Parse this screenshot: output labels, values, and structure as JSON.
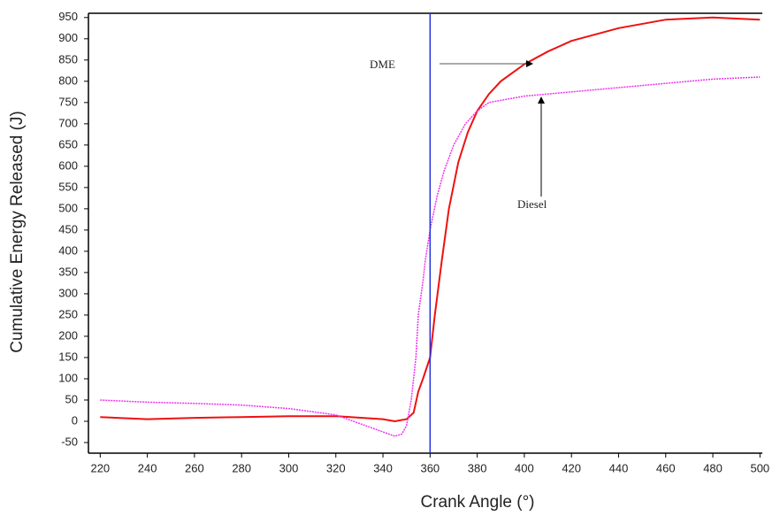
{
  "chart_data": {
    "type": "line",
    "xlabel": "Crank Angle (°)",
    "ylabel": "Cumulative Energy Released (J)",
    "xlim": [
      215,
      501
    ],
    "ylim": [
      -75,
      960
    ],
    "xticks": [
      220,
      240,
      260,
      280,
      300,
      320,
      340,
      360,
      380,
      400,
      420,
      440,
      460,
      480,
      500
    ],
    "yticks": [
      -50,
      0,
      50,
      100,
      150,
      200,
      250,
      300,
      350,
      400,
      450,
      500,
      550,
      600,
      650,
      700,
      750,
      800,
      850,
      900,
      950
    ],
    "vline": {
      "value": 360,
      "color": "#2030e0"
    },
    "annotations": [
      "DME",
      "Diesel"
    ],
    "series": [
      {
        "name": "DME",
        "color": "#ee1111",
        "x": [
          220,
          240,
          260,
          280,
          300,
          320,
          340,
          345,
          350,
          353,
          355,
          357,
          360,
          362,
          365,
          368,
          372,
          376,
          380,
          385,
          390,
          400,
          410,
          420,
          440,
          460,
          480,
          500
        ],
        "values": [
          10,
          5,
          8,
          10,
          12,
          12,
          5,
          0,
          5,
          20,
          70,
          100,
          150,
          250,
          380,
          500,
          610,
          680,
          730,
          770,
          800,
          840,
          870,
          895,
          925,
          945,
          950,
          945
        ]
      },
      {
        "name": "Diesel",
        "color": "#ee33ee",
        "x": [
          220,
          240,
          260,
          280,
          300,
          320,
          340,
          345,
          348,
          350,
          352,
          354,
          355,
          357,
          358,
          360,
          363,
          366,
          370,
          375,
          380,
          385,
          390,
          400,
          420,
          440,
          460,
          480,
          500
        ],
        "values": [
          50,
          45,
          42,
          38,
          30,
          15,
          -25,
          -35,
          -30,
          -10,
          50,
          150,
          250,
          330,
          380,
          450,
          530,
          590,
          650,
          700,
          730,
          750,
          755,
          765,
          775,
          785,
          795,
          805,
          810
        ]
      }
    ]
  }
}
